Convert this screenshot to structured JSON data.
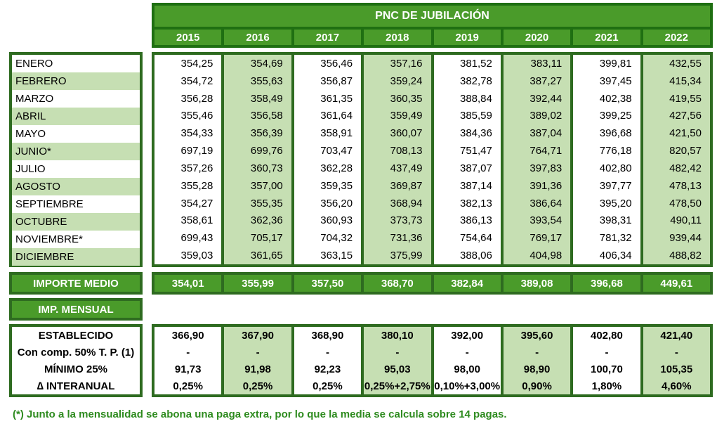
{
  "header": {
    "title": "PNC DE JUBILACIÓN",
    "years": [
      "2015",
      "2016",
      "2017",
      "2018",
      "2019",
      "2020",
      "2021",
      "2022"
    ]
  },
  "months": [
    "ENERO",
    "FEBRERO",
    "MARZO",
    "ABRIL",
    "MAYO",
    "JUNIO*",
    "JULIO",
    "AGOSTO",
    "SEPTIEMBRE",
    "OCTUBRE",
    "NOVIEMBRE*",
    "DICIEMBRE"
  ],
  "monthly_values": [
    [
      "354,25",
      "354,69",
      "356,46",
      "357,16",
      "381,52",
      "383,11",
      "399,81",
      "432,55"
    ],
    [
      "354,72",
      "355,63",
      "356,87",
      "359,24",
      "382,78",
      "387,27",
      "397,45",
      "415,34"
    ],
    [
      "356,28",
      "358,49",
      "361,35",
      "360,35",
      "388,84",
      "392,44",
      "402,38",
      "419,55"
    ],
    [
      "355,46",
      "356,58",
      "361,64",
      "359,49",
      "385,59",
      "389,02",
      "399,25",
      "427,56"
    ],
    [
      "354,33",
      "356,39",
      "358,91",
      "360,07",
      "384,36",
      "387,04",
      "396,68",
      "421,50"
    ],
    [
      "697,19",
      "699,76",
      "703,47",
      "708,13",
      "751,47",
      "764,71",
      "776,18",
      "820,57"
    ],
    [
      "357,26",
      "360,73",
      "362,28",
      "437,49",
      "387,07",
      "397,83",
      "402,80",
      "482,42"
    ],
    [
      "355,28",
      "357,00",
      "359,35",
      "369,87",
      "387,14",
      "391,36",
      "397,77",
      "478,13"
    ],
    [
      "354,27",
      "355,35",
      "356,20",
      "368,94",
      "382,13",
      "386,64",
      "395,20",
      "478,50"
    ],
    [
      "358,61",
      "362,36",
      "360,93",
      "373,73",
      "386,13",
      "393,54",
      "398,31",
      "490,11"
    ],
    [
      "699,43",
      "705,17",
      "704,32",
      "731,36",
      "754,64",
      "769,17",
      "781,32",
      "939,44"
    ],
    [
      "359,03",
      "361,65",
      "363,15",
      "375,99",
      "388,06",
      "404,98",
      "406,34",
      "488,82"
    ]
  ],
  "importe_medio": {
    "label": "IMPORTE MEDIO",
    "values": [
      "354,01",
      "355,99",
      "357,50",
      "368,70",
      "382,84",
      "389,08",
      "396,68",
      "449,61"
    ]
  },
  "imp_mensual": {
    "label": "IMP. MENSUAL"
  },
  "bottom_labels": [
    "ESTABLECIDO",
    "Con comp. 50% T. P. (1)",
    "MÍNIMO 25%",
    "∆ INTERANUAL"
  ],
  "bottom_values": [
    [
      "366,90",
      "367,90",
      "368,90",
      "380,10",
      "392,00",
      "395,60",
      "402,80",
      "421,40"
    ],
    [
      "-",
      "-",
      "-",
      "-",
      "-",
      "-",
      "-",
      "-"
    ],
    [
      "91,73",
      "91,98",
      "92,23",
      "95,03",
      "98,00",
      "98,90",
      "100,70",
      "105,35"
    ],
    [
      "0,25%",
      "0,25%",
      "0,25%",
      "0,25%+2,75%",
      "0,10%+3,00%",
      "0,90%",
      "1,80%",
      "4,60%"
    ]
  ],
  "footnote": "(*) Junto a la mensualidad se abona una paga extra, por lo que la media se calcula sobre 14 pagas.",
  "colors": {
    "dark_green": "#2e6b20",
    "header_green": "#4a9b2a",
    "light_green": "#c6dfb3",
    "footnote_green": "#2e8b1f"
  }
}
